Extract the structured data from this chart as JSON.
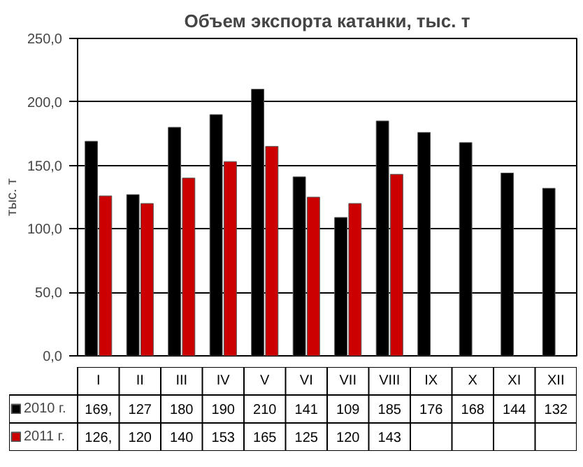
{
  "chart_data": {
    "type": "bar",
    "title": "Объем экспорта катанки, тыс. т",
    "ylabel": "тыс. т",
    "categories": [
      "I",
      "II",
      "III",
      "IV",
      "V",
      "VI",
      "VII",
      "VIII",
      "IX",
      "X",
      "XI",
      "XII"
    ],
    "series": [
      {
        "name": "2010 г.",
        "color": "#000000",
        "values": [
          169,
          127,
          180,
          190,
          210,
          141,
          109,
          185,
          176,
          168,
          144,
          132
        ],
        "value_labels": [
          "169,",
          "127",
          "180",
          "190",
          "210",
          "141",
          "109",
          "185",
          "176",
          "168",
          "144",
          "132"
        ]
      },
      {
        "name": "2011 г.",
        "color": "#cc0000",
        "values": [
          126,
          120,
          140,
          153,
          165,
          125,
          120,
          143,
          null,
          null,
          null,
          null
        ],
        "value_labels": [
          "126,",
          "120",
          "140",
          "153",
          "165",
          "125",
          "120",
          "143",
          null,
          null,
          null,
          null
        ]
      }
    ],
    "ylim": [
      0,
      250
    ],
    "yticks": [
      {
        "value": 0,
        "label": "0,0"
      },
      {
        "value": 50,
        "label": "50,0"
      },
      {
        "value": 100,
        "label": "100,0"
      },
      {
        "value": 150,
        "label": "150,0"
      },
      {
        "value": 200,
        "label": "200,0"
      },
      {
        "value": 250,
        "label": "250,0"
      }
    ],
    "grid": "y",
    "legend": "bottom left"
  }
}
